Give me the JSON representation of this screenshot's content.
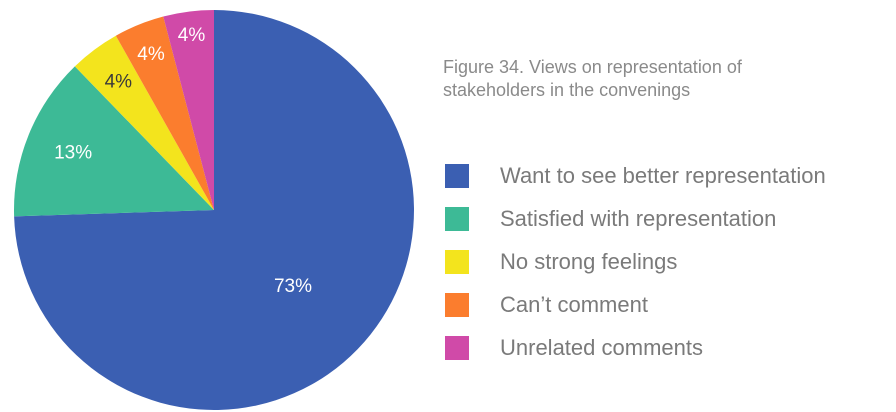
{
  "caption": {
    "line1": "Figure 34. Views on representation of",
    "line2": "stakeholders in the convenings"
  },
  "chart_data": {
    "type": "pie",
    "title": "Figure 34. Views on representation of stakeholders in the convenings",
    "legend_position": "right",
    "start_angle": "12 o'clock",
    "direction": "clockwise",
    "slices": [
      {
        "label": "Want to see better representation",
        "value": 73,
        "display": "73%",
        "color": "#3b5fb2"
      },
      {
        "label": "Satisfied with representation",
        "value": 13,
        "display": "13%",
        "color": "#3dba96"
      },
      {
        "label": "No strong feelings",
        "value": 4,
        "display": "4%",
        "color": "#f3e41d"
      },
      {
        "label": "Can’t comment",
        "value": 4,
        "display": "4%",
        "color": "#fb7d2e"
      },
      {
        "label": "Unrelated comments",
        "value": 4,
        "display": "4%",
        "color": "#d04aa8"
      }
    ]
  }
}
